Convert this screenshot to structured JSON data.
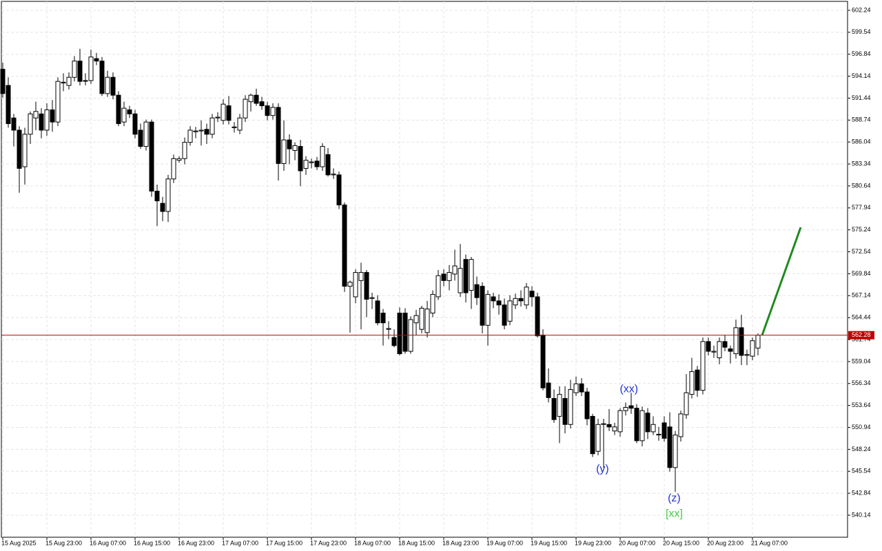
{
  "chart_data": {
    "type": "candlestick",
    "ylim": [
      537.43,
      603.34
    ],
    "yticks": [
      602.24,
      599.54,
      596.84,
      594.14,
      591.44,
      588.74,
      586.04,
      583.34,
      580.64,
      577.94,
      575.24,
      572.54,
      569.84,
      567.14,
      564.44,
      561.74,
      559.04,
      556.34,
      553.64,
      550.94,
      548.24,
      545.54,
      542.84,
      540.14
    ],
    "xlim": [
      -0.25,
      153.25
    ],
    "xticks": [
      {
        "value": 0,
        "label": "15 Aug 2025"
      },
      {
        "value": 8,
        "label": "15 Aug 23:00"
      },
      {
        "value": 16,
        "label": "16 Aug 07:00"
      },
      {
        "value": 24,
        "label": "16 Aug 15:00"
      },
      {
        "value": 32,
        "label": "16 Aug 23:00"
      },
      {
        "value": 40,
        "label": "17 Aug 07:00"
      },
      {
        "value": 48,
        "label": "17 Aug 15:00"
      },
      {
        "value": 56,
        "label": "17 Aug 23:00"
      },
      {
        "value": 64,
        "label": "18 Aug 07:00"
      },
      {
        "value": 72,
        "label": "18 Aug 15:00"
      },
      {
        "value": 80,
        "label": "18 Aug 23:00"
      },
      {
        "value": 88,
        "label": "19 Aug 07:00"
      },
      {
        "value": 96,
        "label": "19 Aug 15:00"
      },
      {
        "value": 104,
        "label": "19 Aug 23:00"
      },
      {
        "value": 112,
        "label": "20 Aug 07:00"
      },
      {
        "value": 120,
        "label": "20 Aug 15:00"
      },
      {
        "value": 128,
        "label": "20 Aug 23:00"
      },
      {
        "value": 136,
        "label": "21 Aug 07:00"
      }
    ],
    "grid": true,
    "ohlc": [
      [
        595,
        595.8,
        591.5,
        592
      ],
      [
        593,
        594,
        587.8,
        588.3
      ],
      [
        589,
        589.5,
        585.5,
        587.5
      ],
      [
        587.5,
        588,
        579.8,
        582.8
      ],
      [
        583,
        587.8,
        580.8,
        587
      ],
      [
        587,
        589.8,
        585.8,
        589.5
      ],
      [
        589,
        591,
        587.5,
        589.8
      ],
      [
        589.5,
        590.2,
        586.5,
        587.5
      ],
      [
        587.5,
        590.8,
        586.8,
        590
      ],
      [
        590,
        591.2,
        587.3,
        588.5
      ],
      [
        588.5,
        594,
        588,
        593.5
      ],
      [
        593.3,
        594.5,
        592.3,
        593.4
      ],
      [
        593,
        594.6,
        592.5,
        594
      ],
      [
        594,
        596.6,
        593.5,
        596
      ],
      [
        596,
        597.5,
        593,
        593.5
      ],
      [
        593.6,
        594.5,
        593,
        593.6
      ],
      [
        593.6,
        597.4,
        593.2,
        596.5
      ],
      [
        596.3,
        597,
        595.5,
        596
      ],
      [
        596,
        596.5,
        591.7,
        592
      ],
      [
        592,
        594.8,
        591.6,
        594
      ],
      [
        594,
        594.6,
        591.3,
        591.8
      ],
      [
        591.8,
        592.3,
        588,
        588.3
      ],
      [
        588.5,
        591,
        588,
        590.2
      ],
      [
        590,
        590.5,
        589,
        589.5
      ],
      [
        589.5,
        590,
        586.5,
        587
      ],
      [
        587.5,
        588.3,
        585.2,
        585.5
      ],
      [
        585.5,
        588.8,
        585,
        588.5
      ],
      [
        588.5,
        588.8,
        579.3,
        580
      ],
      [
        580,
        580.8,
        575.7,
        578.8
      ],
      [
        578.5,
        579.3,
        576.3,
        577.5
      ],
      [
        577.5,
        582,
        576.2,
        581.5
      ],
      [
        581.5,
        584.5,
        581,
        584
      ],
      [
        583.8,
        584.3,
        583.5,
        584
      ],
      [
        584,
        586.6,
        583.3,
        586
      ],
      [
        586,
        588,
        585.6,
        587.5
      ],
      [
        587.3,
        587.9,
        586.5,
        587.4
      ],
      [
        587.4,
        588.7,
        585.6,
        587.5
      ],
      [
        587.6,
        588.3,
        585.8,
        587
      ],
      [
        587,
        589.5,
        586.5,
        589
      ],
      [
        589,
        589.7,
        588.5,
        589.1
      ],
      [
        588.7,
        591.3,
        588.2,
        590.7
      ],
      [
        590.5,
        591.7,
        588.2,
        588.7
      ],
      [
        587.8,
        588.5,
        587.2,
        587.9
      ],
      [
        587.5,
        589.5,
        587,
        589
      ],
      [
        589,
        591.8,
        588.5,
        591.3
      ],
      [
        591,
        592,
        589.8,
        591.8
      ],
      [
        591.8,
        592.6,
        590.5,
        590.8
      ],
      [
        591,
        591.6,
        590,
        590.5
      ],
      [
        590.5,
        591,
        588.7,
        589.3
      ],
      [
        589.3,
        590.8,
        588.8,
        590.3
      ],
      [
        590.3,
        590.8,
        581.3,
        583.4
      ],
      [
        583.4,
        588.7,
        582.5,
        586.3
      ],
      [
        586.3,
        587,
        583.3,
        585.2
      ],
      [
        585,
        586,
        583.8,
        585.6
      ],
      [
        585.5,
        586.3,
        580.6,
        582.5
      ],
      [
        582.8,
        584.3,
        582,
        583.8
      ],
      [
        583.5,
        584,
        582.8,
        583.6
      ],
      [
        583.7,
        584.2,
        582.6,
        583
      ],
      [
        583,
        585.9,
        582.5,
        585.5
      ],
      [
        584.5,
        585.3,
        581.8,
        582
      ],
      [
        582,
        582.8,
        581.5,
        582.1
      ],
      [
        582,
        582.4,
        577.8,
        578.3
      ],
      [
        578.3,
        578.6,
        567.6,
        568.3
      ],
      [
        568.3,
        569,
        562.6,
        568.8
      ],
      [
        567,
        570.4,
        566.2,
        570
      ],
      [
        569,
        571.2,
        563,
        570
      ],
      [
        570,
        570.3,
        564.5,
        566.7
      ],
      [
        566.8,
        567.5,
        565.5,
        566.9
      ],
      [
        566.5,
        567.2,
        563.5,
        563.8
      ],
      [
        565,
        565.5,
        561,
        563.8
      ],
      [
        563,
        564,
        561.8,
        563.1
      ],
      [
        562,
        563,
        560.8,
        561
      ],
      [
        565,
        565.7,
        559.8,
        560
      ],
      [
        565,
        565.6,
        560,
        560.3
      ],
      [
        560.3,
        564.6,
        560,
        564.2
      ],
      [
        563.8,
        565.4,
        562.3,
        564.7
      ],
      [
        563,
        565.9,
        562.5,
        565.6
      ],
      [
        562.6,
        566.5,
        562,
        565.5
      ],
      [
        565,
        567.8,
        564.5,
        567.3
      ],
      [
        567,
        570.3,
        566.6,
        569.6
      ],
      [
        569.8,
        570.4,
        568.3,
        569
      ],
      [
        569,
        570.9,
        567.8,
        570
      ],
      [
        569.8,
        572.8,
        569,
        570.8
      ],
      [
        567.5,
        573.5,
        567,
        570.5
      ],
      [
        571.6,
        572.2,
        566.3,
        567.5
      ],
      [
        567.8,
        571.9,
        565.5,
        571.6
      ],
      [
        568.5,
        569.5,
        566,
        566.9
      ],
      [
        568.3,
        568.8,
        562.5,
        563.5
      ],
      [
        563.5,
        567.8,
        561,
        567.3
      ],
      [
        567,
        567.5,
        565.6,
        566.5
      ],
      [
        566.5,
        567.3,
        564.8,
        566
      ],
      [
        566,
        566.8,
        563,
        563.5
      ],
      [
        564,
        567.2,
        563.5,
        566.5
      ],
      [
        566,
        567.4,
        565.5,
        566.8
      ],
      [
        566.8,
        567.8,
        565.8,
        566.5
      ],
      [
        566,
        568.7,
        565.5,
        568.2
      ],
      [
        567.7,
        568.3,
        565.8,
        567
      ],
      [
        567,
        567.5,
        562,
        562.2
      ],
      [
        562.3,
        563,
        555.5,
        555.8
      ],
      [
        556.4,
        558.2,
        554,
        554.6
      ],
      [
        554.5,
        555.6,
        551.5,
        551.9
      ],
      [
        552.3,
        556,
        549,
        555
      ],
      [
        554.5,
        556,
        550.2,
        551.3
      ],
      [
        551.3,
        556.8,
        550.8,
        555.6
      ],
      [
        555.2,
        557.2,
        554.8,
        556.3
      ],
      [
        556.3,
        557,
        554.8,
        555.3
      ],
      [
        555.3,
        555.8,
        551.2,
        552
      ],
      [
        552.3,
        552.6,
        547.3,
        547.7
      ],
      [
        548,
        552,
        547.5,
        551.3
      ],
      [
        551.3,
        552,
        546,
        551.4
      ],
      [
        551.3,
        553.2,
        550.5,
        551
      ],
      [
        550.5,
        551.5,
        550,
        551
      ],
      [
        550.4,
        553.3,
        549.8,
        553
      ],
      [
        553,
        554,
        552.4,
        553.4
      ],
      [
        553.6,
        555.2,
        552.6,
        553.3
      ],
      [
        553.3,
        553.8,
        549,
        549.3
      ],
      [
        549.3,
        553.5,
        548.6,
        553
      ],
      [
        552.7,
        553.3,
        549.5,
        550.4
      ],
      [
        550.4,
        552.3,
        550,
        551.3
      ],
      [
        550,
        551,
        549.3,
        550.1
      ],
      [
        551.5,
        552.3,
        549.2,
        549.6
      ],
      [
        551,
        552.8,
        545.5,
        546
      ],
      [
        546,
        550.5,
        543,
        550
      ],
      [
        549.8,
        553,
        549.2,
        552.6
      ],
      [
        552.5,
        557.5,
        552,
        555.2
      ],
      [
        555,
        559.5,
        554.5,
        557.8
      ],
      [
        558,
        558.5,
        554.7,
        555.5
      ],
      [
        555.5,
        562,
        555,
        561.5
      ],
      [
        561.5,
        562,
        559.8,
        560.3
      ],
      [
        560.2,
        561,
        559.5,
        560.3
      ],
      [
        559.5,
        562,
        558.7,
        561.5
      ],
      [
        561.5,
        562.3,
        560.3,
        560.8
      ],
      [
        560.6,
        561,
        558.8,
        560.3
      ],
      [
        560,
        564.2,
        559.4,
        563.2
      ],
      [
        563.2,
        564.8,
        558.6,
        559.8
      ],
      [
        559.8,
        560.5,
        558.6,
        559.9
      ],
      [
        559.7,
        562,
        559.2,
        561.6
      ],
      [
        560.7,
        562.5,
        559.8,
        562.28
      ]
    ],
    "last_price": 562.28,
    "last_price_color": "#c00000",
    "forecast": {
      "color": "#1e8a1e",
      "x": [
        137.75,
        144.75
      ],
      "values": [
        562.28,
        575.54
      ]
    },
    "annotations": [
      {
        "text": "(xx)",
        "x": 113.6,
        "y": 555.6,
        "color": "#2233dd"
      },
      {
        "text": "(y)",
        "x": 108.8,
        "y": 545.8,
        "color": "#2233dd"
      },
      {
        "text": "(z)",
        "x": 121.8,
        "y": 542.2,
        "color": "#2233dd"
      },
      {
        "text": "[xx]",
        "x": 121.8,
        "y": 540.3,
        "color": "#44cc44"
      }
    ]
  }
}
